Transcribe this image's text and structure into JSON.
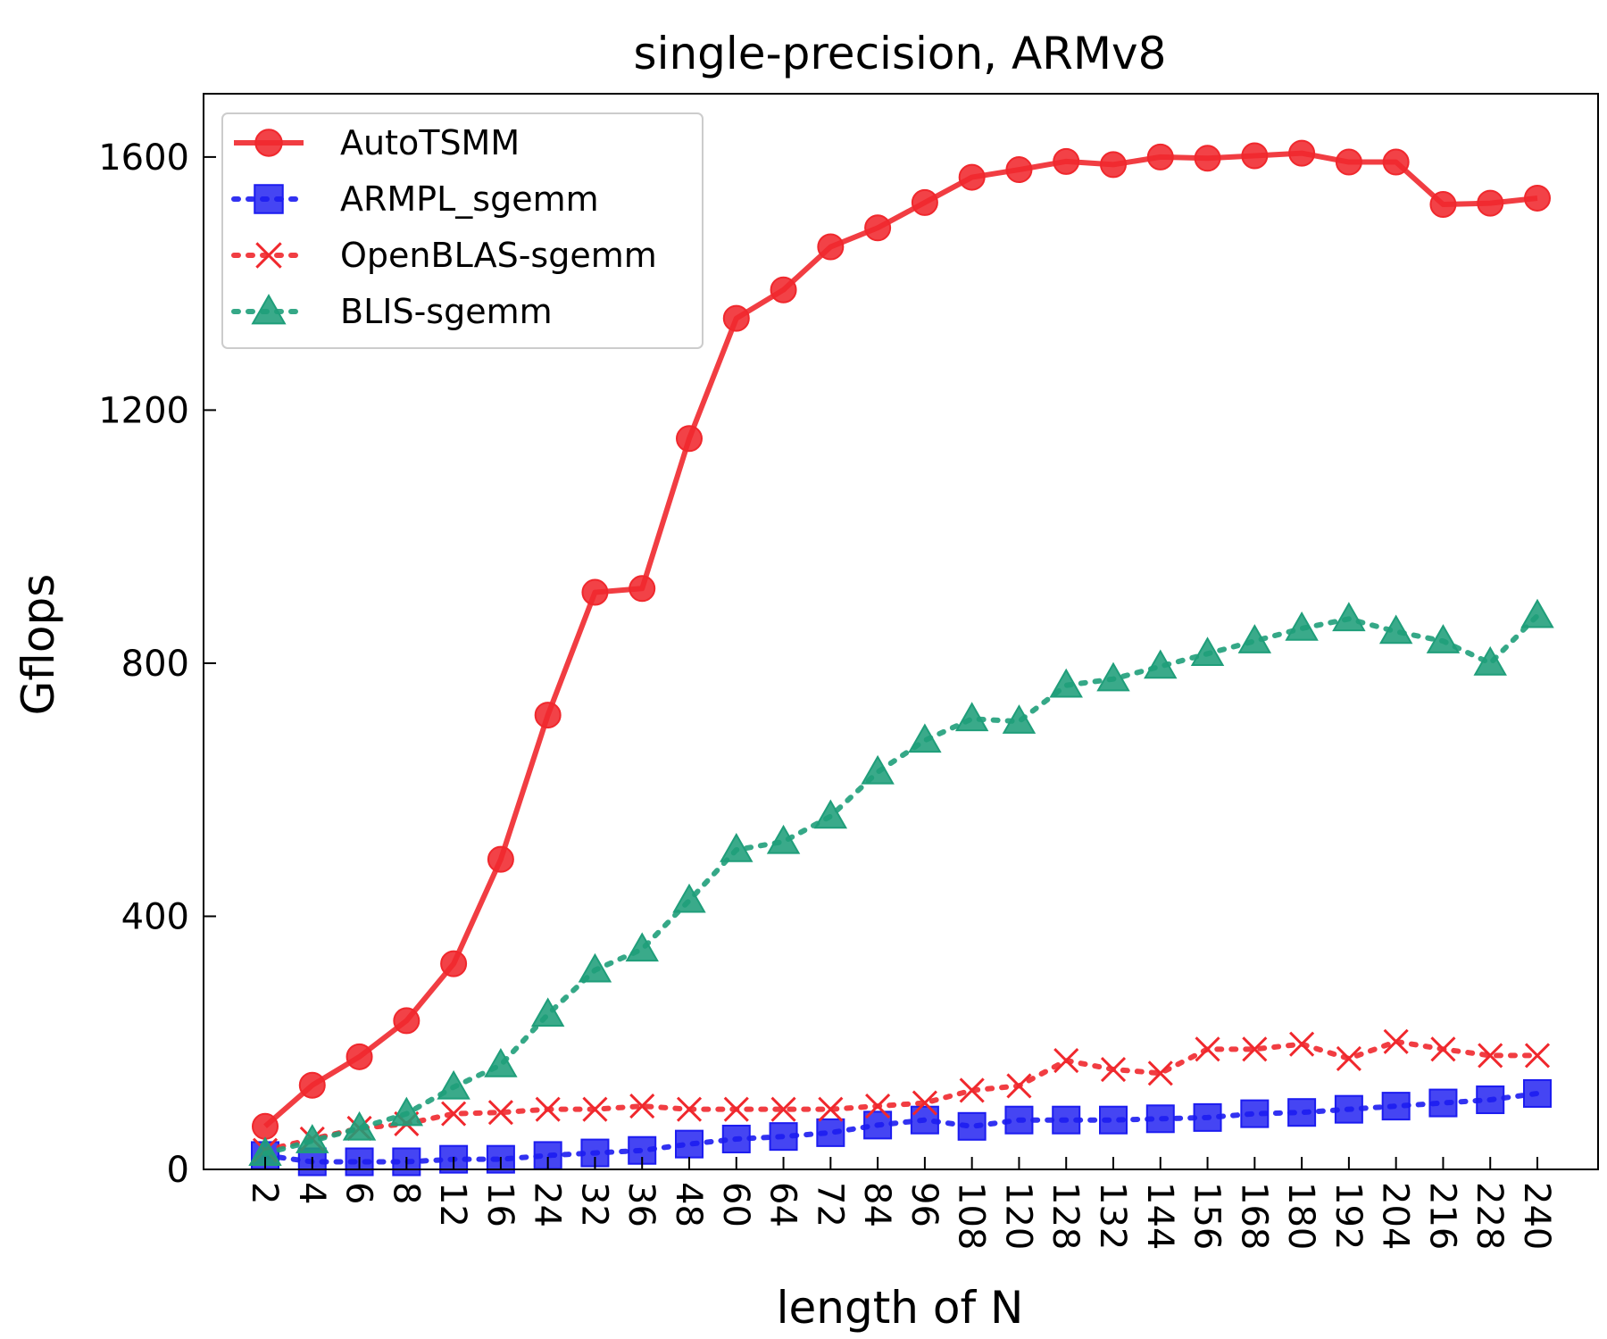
{
  "chart_data": {
    "type": "line",
    "title": "single-precision, ARMv8",
    "xlabel": "length of N",
    "ylabel": "Gflops",
    "ylim": [
      0,
      1700
    ],
    "yticks": [
      0,
      400,
      800,
      1200,
      1600
    ],
    "grid": false,
    "legend_position": "top-left",
    "categories": [
      "2",
      "4",
      "6",
      "8",
      "12",
      "16",
      "24",
      "32",
      "36",
      "48",
      "60",
      "64",
      "72",
      "84",
      "96",
      "108",
      "120",
      "128",
      "132",
      "144",
      "156",
      "168",
      "180",
      "192",
      "204",
      "216",
      "228",
      "240"
    ],
    "series": [
      {
        "name": "AutoTSMM",
        "color": "#f0282d",
        "style": "solid",
        "marker": "circle",
        "values": [
          68,
          133,
          178,
          235,
          325,
          490,
          718,
          912,
          918,
          1155,
          1345,
          1390,
          1458,
          1488,
          1528,
          1568,
          1580,
          1593,
          1588,
          1600,
          1598,
          1602,
          1606,
          1592,
          1592,
          1525,
          1527,
          1535
        ]
      },
      {
        "name": "ARMPL_sgemm",
        "color": "#1c1cf0",
        "style": "dotted",
        "marker": "square",
        "values": [
          22,
          12,
          12,
          12,
          16,
          16,
          22,
          26,
          30,
          40,
          48,
          52,
          58,
          70,
          78,
          68,
          78,
          78,
          78,
          80,
          82,
          88,
          90,
          95,
          100,
          105,
          110,
          120
        ]
      },
      {
        "name": "OpenBLAS-sgemm",
        "color": "#f0282d",
        "style": "dotted",
        "marker": "x",
        "values": [
          30,
          48,
          65,
          72,
          88,
          90,
          95,
          95,
          100,
          95,
          95,
          95,
          95,
          100,
          105,
          125,
          132,
          172,
          158,
          152,
          190,
          190,
          198,
          175,
          202,
          190,
          180,
          180
        ]
      },
      {
        "name": "BLIS-sgemm",
        "color": "#1f9e7a",
        "style": "dotted",
        "marker": "triangle",
        "values": [
          25,
          45,
          65,
          88,
          130,
          165,
          245,
          315,
          348,
          425,
          505,
          518,
          558,
          628,
          678,
          712,
          708,
          765,
          775,
          795,
          815,
          835,
          855,
          870,
          850,
          835,
          800,
          875
        ]
      }
    ]
  }
}
